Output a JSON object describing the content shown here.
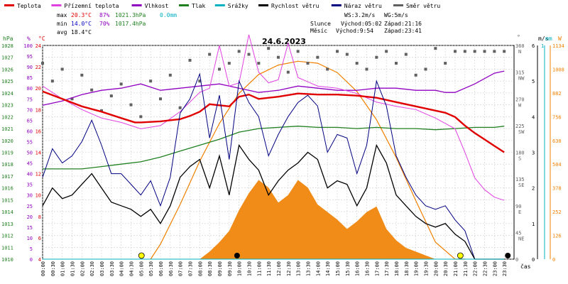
{
  "chart_data": {
    "type": "line",
    "title": "24.6.2023",
    "legend": [
      {
        "label": "Teplota",
        "color": "#e00000"
      },
      {
        "label": "Přízemní teplota",
        "color": "#e040e0"
      },
      {
        "label": "Vlhkost",
        "color": "#9000c0"
      },
      {
        "label": "Tlak",
        "color": "#208020"
      },
      {
        "label": "Srážky",
        "color": "#00b0c0"
      },
      {
        "label": "Rychlost větru",
        "color": "#000000"
      },
      {
        "label": "Náraz větru",
        "color": "#000080"
      },
      {
        "label": "Směr větru",
        "color": "#606060"
      }
    ],
    "stats": {
      "max": {
        "label": "max",
        "temp": "20.3°C",
        "hum": "87%",
        "press": "1021.3hPa",
        "rain": "0.0mm"
      },
      "min": {
        "label": "min",
        "temp": "14.0°C",
        "hum": "70%",
        "press": "1017.4hPa"
      },
      "avg": {
        "label": "avg",
        "temp": "18.4°C"
      }
    },
    "info": {
      "ws": "WS:3.2m/s",
      "wg": "WG:5m/s",
      "sun_label": "Slunce",
      "sunrise": "Východ:05:02",
      "sunset": "Západ:21:16",
      "moon_label": "Měsíc",
      "moonrise": "Východ:9:54",
      "moonset": "Západ:23:41"
    },
    "axes": {
      "unit_hpa": "hPa",
      "unit_pct": "%",
      "unit_c": "°C",
      "unit_deg": "°",
      "unit_ms": "m/s",
      "unit_mm": "mm",
      "unit_w": "W",
      "pressure_ticks": [
        1028,
        1027,
        1026,
        1025,
        1024,
        1023,
        1022,
        1021,
        1020,
        1019,
        1018,
        1017,
        1016,
        1015,
        1014,
        1013,
        1012,
        1011,
        1010
      ],
      "humidity_ticks": [
        100,
        95,
        90,
        85,
        80,
        75,
        70,
        65,
        60,
        55,
        50,
        45,
        40,
        35,
        30,
        25,
        20,
        15,
        10,
        5,
        0
      ],
      "temp_ticks": [
        24,
        22,
        20,
        18,
        16,
        14,
        12,
        10,
        8,
        6,
        4
      ],
      "dir_ticks": [
        {
          "v": 360,
          "c": "N"
        },
        {
          "v": 315,
          "c": "NW"
        },
        {
          "v": 270,
          "c": "W"
        },
        {
          "v": 225,
          "c": "SW"
        },
        {
          "v": 180,
          "c": "S"
        },
        {
          "v": 135,
          "c": "SE"
        },
        {
          "v": 90,
          "c": "E"
        },
        {
          "v": 45,
          "c": "NE"
        },
        {
          "v": 0,
          "c": ""
        }
      ],
      "wind_ticks": [
        6,
        5,
        4,
        3,
        2,
        1,
        0
      ],
      "rain_top": "1",
      "solar_ticks": [
        1134,
        1008,
        882,
        756,
        630,
        504,
        378,
        252,
        126,
        0
      ],
      "x_ticks": [
        "00:00",
        "00:30",
        "01:00",
        "01:30",
        "02:00",
        "02:30",
        "03:00",
        "03:30",
        "04:00",
        "04:30",
        "05:00",
        "05:30",
        "06:00",
        "06:30",
        "07:00",
        "07:30",
        "08:00",
        "08:30",
        "09:00",
        "09:30",
        "10:00",
        "10:30",
        "11:00",
        "11:30",
        "12:00",
        "12:30",
        "13:00",
        "13:30",
        "14:00",
        "14:30",
        "15:00",
        "15:30",
        "16:00",
        "16:30",
        "17:00",
        "17:30",
        "18:00",
        "18:30",
        "19:00",
        "19:30",
        "20:00",
        "20:30",
        "21:00",
        "21:30",
        "22:00",
        "22:30",
        "23:00",
        "23:30"
      ],
      "x_label": "čas"
    },
    "series": {
      "temperature": {
        "name": "Teplota",
        "color": "#e00000",
        "x": [
          0,
          1,
          2,
          3,
          4,
          4.7,
          5,
          6,
          7,
          7.5,
          8,
          8.5,
          9,
          9.5,
          10,
          10.5,
          11,
          12,
          13,
          14,
          15,
          16,
          17,
          18,
          19,
          20,
          20.5,
          21,
          21.5,
          22,
          22.5,
          23,
          23.5
        ],
        "y": [
          19.7,
          19.0,
          18.3,
          17.8,
          17.2,
          16.8,
          16.8,
          16.9,
          17.1,
          17.4,
          17.8,
          18.5,
          18.4,
          18.3,
          19.2,
          19.4,
          19.0,
          19.2,
          19.5,
          19.4,
          19.4,
          19.3,
          19.1,
          18.7,
          18.3,
          17.9,
          17.7,
          17.3,
          16.5,
          15.8,
          15.2,
          14.6,
          14.0
        ]
      },
      "ground_temperature": {
        "name": "Přízemní teplota",
        "color": "#e040e0",
        "x": [
          0,
          1,
          2,
          3,
          4,
          5,
          6,
          7,
          8,
          8.5,
          9,
          9.5,
          10,
          10.5,
          11,
          11.5,
          12,
          12.5,
          13,
          13.5,
          14,
          15,
          16,
          17,
          18,
          19,
          20,
          21,
          21.5,
          22,
          22.5,
          23,
          23.5
        ],
        "y": [
          20.2,
          19.0,
          18.0,
          17.2,
          16.8,
          16.2,
          16.5,
          17.8,
          19.6,
          20.0,
          24.0,
          20.2,
          20.5,
          25.0,
          21.5,
          20.5,
          20.8,
          24.2,
          21.0,
          20.6,
          20.2,
          20.0,
          19.5,
          18.7,
          18.3,
          18.0,
          17.2,
          16.2,
          14.0,
          11.6,
          10.5,
          9.8,
          9.5
        ]
      },
      "humidity": {
        "name": "Vlhkost",
        "color": "#9000c0",
        "x": [
          0,
          1,
          2,
          3,
          4,
          5,
          6,
          7,
          8,
          9,
          10,
          11,
          12,
          13,
          14,
          15,
          16,
          17,
          18,
          19,
          20,
          20.5,
          21,
          22,
          23,
          23.5
        ],
        "y": [
          72,
          74,
          77,
          79,
          80,
          82,
          79,
          80,
          81,
          82,
          80,
          78,
          79,
          81,
          80,
          79,
          79,
          80,
          80,
          79,
          79,
          78,
          78,
          82,
          87,
          88
        ]
      },
      "pressure": {
        "name": "Tlak",
        "color": "#208020",
        "x": [
          0,
          1,
          2,
          3,
          4,
          5,
          6,
          7,
          8,
          9,
          10,
          11,
          12,
          13,
          14,
          15,
          16,
          17,
          18,
          19,
          20,
          21,
          22,
          23,
          23.5
        ],
        "y": [
          1017.6,
          1017.6,
          1017.6,
          1017.8,
          1018.0,
          1018.2,
          1018.6,
          1019.1,
          1019.6,
          1020.1,
          1020.7,
          1021.0,
          1021.1,
          1021.2,
          1021.1,
          1021.1,
          1021.0,
          1021.1,
          1021.0,
          1021.0,
          1020.9,
          1021.0,
          1021.1,
          1021.1,
          1021.2
        ]
      },
      "rain": {
        "name": "Srážky",
        "color": "#00b0c0",
        "x": [
          0,
          23.5
        ],
        "y": [
          0,
          0
        ]
      },
      "wind_speed": {
        "name": "Rychlost větru",
        "color": "#000000",
        "x": [
          0,
          0.5,
          1,
          1.5,
          2,
          2.5,
          3,
          3.5,
          4,
          4.5,
          5,
          5.5,
          6,
          6.5,
          7,
          7.5,
          8,
          8.5,
          9,
          9.5,
          10,
          10.5,
          11,
          11.5,
          12,
          12.5,
          13,
          13.5,
          14,
          14.5,
          15,
          15.5,
          16,
          16.5,
          17,
          17.5,
          18,
          18.5,
          19,
          19.5,
          20,
          20.5,
          21,
          21.5,
          22,
          22.5,
          23,
          23.5
        ],
        "y": [
          1.5,
          2.0,
          1.7,
          1.8,
          2.1,
          2.4,
          2.0,
          1.6,
          1.5,
          1.4,
          1.2,
          1.4,
          1.0,
          1.5,
          2.3,
          2.6,
          2.8,
          2.0,
          2.9,
          1.8,
          3.2,
          2.8,
          2.5,
          1.8,
          2.2,
          2.5,
          2.7,
          3.0,
          2.8,
          2.0,
          2.2,
          2.1,
          1.5,
          2.0,
          3.2,
          2.7,
          1.8,
          1.5,
          1.2,
          1.0,
          0.9,
          1.0,
          0.7,
          0.5,
          0,
          0,
          0,
          0
        ]
      },
      "wind_gust": {
        "name": "Náraz větru",
        "color": "#000080",
        "x": [
          0,
          0.5,
          1,
          1.5,
          2,
          2.5,
          3,
          3.5,
          4,
          4.5,
          5,
          5.5,
          6,
          6.5,
          7,
          7.5,
          8,
          8.5,
          9,
          9.5,
          10,
          10.5,
          11,
          11.5,
          12,
          12.5,
          13,
          13.5,
          14,
          14.5,
          15,
          15.5,
          16,
          16.5,
          17,
          17.5,
          18,
          18.5,
          19,
          19.5,
          20,
          20.5,
          21,
          21.5,
          22,
          22.5,
          23,
          23.5
        ],
        "y": [
          2.3,
          3.1,
          2.7,
          2.9,
          3.3,
          3.9,
          3.2,
          2.4,
          2.4,
          2.1,
          1.8,
          2.2,
          1.5,
          2.3,
          4.1,
          4.5,
          5.2,
          3.4,
          4.6,
          2.8,
          5.0,
          4.4,
          4.0,
          2.9,
          3.5,
          4.0,
          4.4,
          4.6,
          4.3,
          3.0,
          3.5,
          3.4,
          2.4,
          3.2,
          5.0,
          4.3,
          2.9,
          2.3,
          1.8,
          1.5,
          1.4,
          1.5,
          1.1,
          0.8,
          0,
          0,
          0,
          0
        ]
      },
      "wind_direction": {
        "name": "Směr větru",
        "color": "#606060",
        "x": [
          0,
          0.5,
          1,
          1.5,
          2,
          2.5,
          3,
          3.5,
          4,
          4.5,
          5,
          5.5,
          6,
          6.5,
          7,
          7.5,
          8,
          8.5,
          9,
          9.5,
          10,
          10.5,
          11,
          11.5,
          12,
          12.5,
          13,
          13.5,
          14,
          14.5,
          15,
          15.5,
          16,
          16.5,
          17,
          17.5,
          18,
          18.5,
          19,
          19.5,
          20,
          20.5,
          21,
          21.5,
          22,
          22.5,
          23,
          23.5
        ],
        "y": [
          330,
          300,
          320,
          270,
          310,
          285,
          250,
          275,
          295,
          260,
          240,
          300,
          270,
          310,
          255,
          335,
          300,
          345,
          320,
          330,
          350,
          345,
          330,
          355,
          340,
          315,
          350,
          330,
          340,
          320,
          350,
          345,
          330,
          320,
          340,
          350,
          330,
          345,
          310,
          320,
          355,
          330,
          350,
          350,
          350,
          350,
          350,
          350
        ]
      },
      "solar": {
        "name": "solar",
        "color": "#f08000",
        "x": [
          5.5,
          6,
          7,
          8,
          9,
          10,
          11,
          12,
          13,
          14,
          15,
          16,
          17,
          18,
          19,
          20,
          21,
          21.5
        ],
        "y": [
          0,
          80,
          290,
          520,
          720,
          880,
          980,
          1030,
          1050,
          1040,
          990,
          890,
          740,
          540,
          310,
          90,
          0,
          0
        ]
      },
      "solar_measured": {
        "name": "solar_measured",
        "color": "#f08000",
        "x": [
          8,
          8.5,
          9,
          9.5,
          10,
          10.5,
          11,
          11.5,
          12,
          12.5,
          13,
          13.5,
          14,
          14.5,
          15,
          15.5,
          16,
          16.5,
          17,
          17.5,
          18,
          18.5,
          19,
          19.5,
          20
        ],
        "y": [
          0,
          40,
          90,
          150,
          260,
          350,
          420,
          380,
          300,
          340,
          420,
          380,
          290,
          250,
          210,
          160,
          200,
          250,
          280,
          160,
          100,
          60,
          40,
          20,
          0
        ]
      }
    }
  }
}
